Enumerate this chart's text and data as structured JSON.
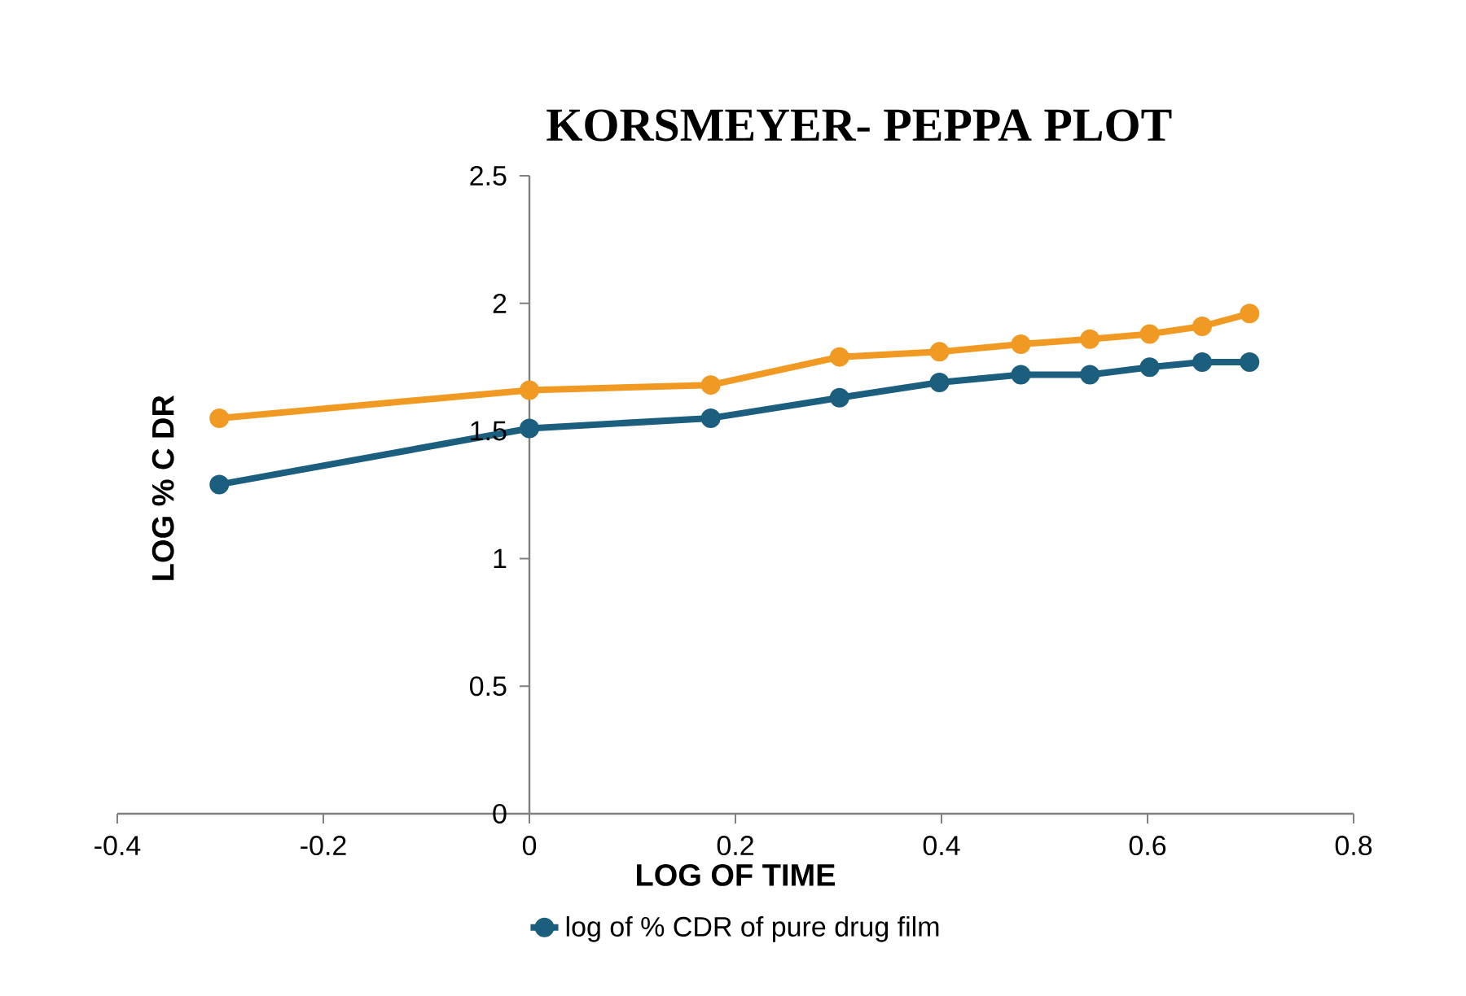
{
  "chart_data": {
    "type": "line",
    "title": "KORSMEYER- PEPPA  PLOT",
    "xlabel": "LOG OF TIME",
    "ylabel": "LOG % C DR",
    "x": [
      -0.301,
      0,
      0.176,
      0.301,
      0.398,
      0.477,
      0.544,
      0.602,
      0.653,
      0.699
    ],
    "series": [
      {
        "name": "log of % CDR of pure drug film",
        "color": "#1b5e7e",
        "values": [
          1.29,
          1.51,
          1.55,
          1.63,
          1.69,
          1.72,
          1.72,
          1.75,
          1.77,
          1.77
        ]
      },
      {
        "color": "#f09a24",
        "values": [
          1.55,
          1.66,
          1.68,
          1.79,
          1.81,
          1.84,
          1.86,
          1.88,
          1.91,
          1.96
        ]
      }
    ],
    "xlim": [
      -0.4,
      0.8
    ],
    "xticks": [
      -0.4,
      -0.2,
      0,
      0.2,
      0.4,
      0.6,
      0.8
    ],
    "ylim": [
      0,
      2.5
    ],
    "yticks": [
      0,
      0.5,
      1,
      1.5,
      2,
      2.5
    ],
    "grid": false,
    "legend": "bottom",
    "marker": "circle",
    "line_style": "solid"
  }
}
